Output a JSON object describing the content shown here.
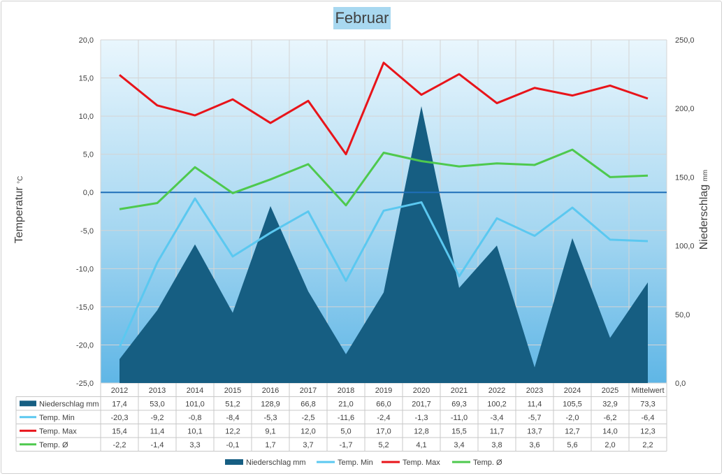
{
  "chart_data": {
    "type": "combo",
    "title": "Februar",
    "ylabel_left": "Temperatur",
    "ylabel_left_unit": "°C",
    "ylabel_right": "Niederschlag",
    "ylabel_right_unit": "mm",
    "ylim_left": [
      -25,
      20
    ],
    "yticks_left": [
      "-25,0",
      "-20,0",
      "-15,0",
      "-10,0",
      "-5,0",
      "0,0",
      "5,0",
      "10,0",
      "15,0",
      "20,0"
    ],
    "ylim_right": [
      0,
      250
    ],
    "yticks_right": [
      "0,0",
      "50,0",
      "100,0",
      "150,0",
      "200,0",
      "250,0"
    ],
    "categories": [
      "2012",
      "2013",
      "2014",
      "2015",
      "2016",
      "2017",
      "2018",
      "2019",
      "2020",
      "2021",
      "2022",
      "2023",
      "2024",
      "2025",
      "Mittelwert"
    ],
    "series": [
      {
        "name": "Niederschlag mm",
        "type": "area",
        "axis": "right",
        "color": "#165e82",
        "values": [
          17.4,
          53.0,
          101.0,
          51.2,
          128.9,
          66.8,
          21.0,
          66.0,
          201.7,
          69.3,
          100.2,
          11.4,
          105.5,
          32.9,
          73.3
        ],
        "labels": [
          "17,4",
          "53,0",
          "101,0",
          "51,2",
          "128,9",
          "66,8",
          "21,0",
          "66,0",
          "201,7",
          "69,3",
          "100,2",
          "11,4",
          "105,5",
          "32,9",
          "73,3"
        ]
      },
      {
        "name": "Temp. Min",
        "type": "line",
        "axis": "left",
        "color": "#5bc8f0",
        "values": [
          -20.3,
          -9.2,
          -0.8,
          -8.4,
          -5.3,
          -2.5,
          -11.6,
          -2.4,
          -1.3,
          -11.0,
          -3.4,
          -5.7,
          -2.0,
          -6.2,
          -6.4
        ],
        "labels": [
          "-20,3",
          "-9,2",
          "-0,8",
          "-8,4",
          "-5,3",
          "-2,5",
          "-11,6",
          "-2,4",
          "-1,3",
          "-11,0",
          "-3,4",
          "-5,7",
          "-2,0",
          "-6,2",
          "-6,4"
        ]
      },
      {
        "name": "Temp. Max",
        "type": "line",
        "axis": "left",
        "color": "#e8141a",
        "values": [
          15.4,
          11.4,
          10.1,
          12.2,
          9.1,
          12.0,
          5.0,
          17.0,
          12.8,
          15.5,
          11.7,
          13.7,
          12.7,
          14.0,
          12.3
        ],
        "labels": [
          "15,4",
          "11,4",
          "10,1",
          "12,2",
          "9,1",
          "12,0",
          "5,0",
          "17,0",
          "12,8",
          "15,5",
          "11,7",
          "13,7",
          "12,7",
          "14,0",
          "12,3"
        ]
      },
      {
        "name": "Temp. Ø",
        "type": "line",
        "axis": "left",
        "color": "#4ec94e",
        "values": [
          -2.2,
          -1.4,
          3.3,
          -0.1,
          1.7,
          3.7,
          -1.7,
          5.2,
          4.1,
          3.4,
          3.8,
          3.6,
          5.6,
          2.0,
          2.2
        ],
        "labels": [
          "-2,2",
          "-1,4",
          "3,3",
          "-0,1",
          "1,7",
          "3,7",
          "-1,7",
          "5,2",
          "4,1",
          "3,4",
          "3,8",
          "3,6",
          "5,6",
          "2,0",
          "2,2"
        ]
      }
    ],
    "zero_line_color": "#1f6fb8",
    "grid": true,
    "legend_placement": "bottom",
    "data_table": true
  }
}
